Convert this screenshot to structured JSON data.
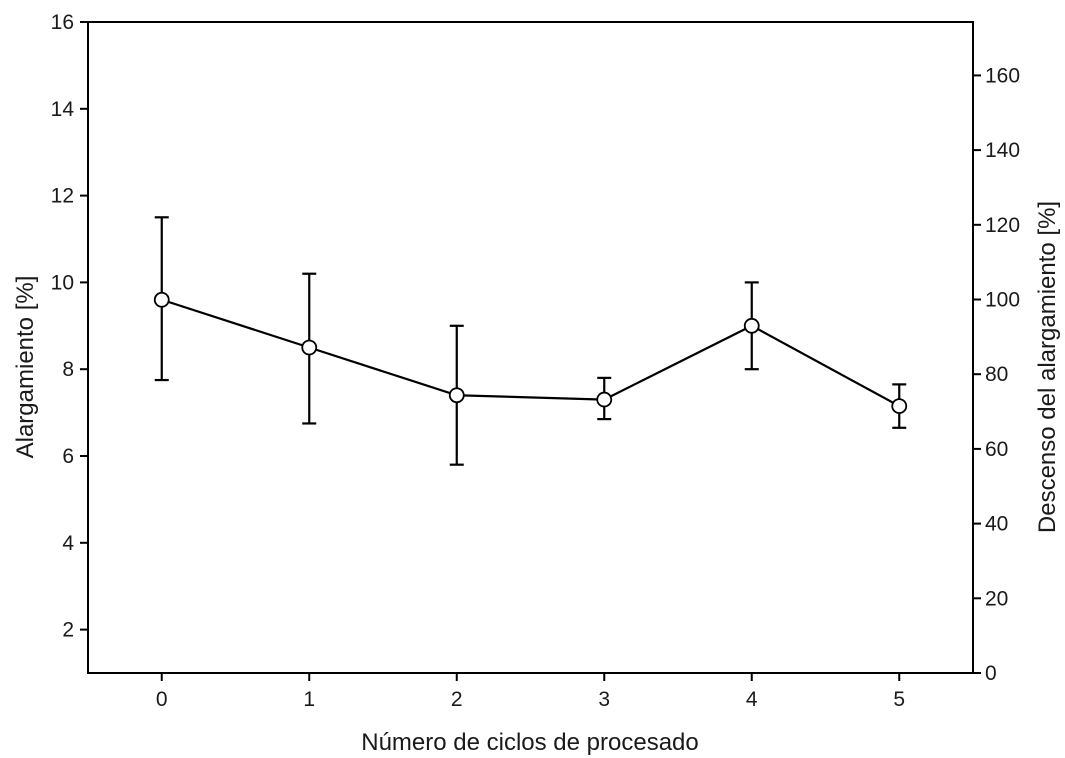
{
  "chart_data": {
    "type": "line",
    "x": [
      0,
      1,
      2,
      3,
      4,
      5
    ],
    "series": [
      {
        "values": [
          9.6,
          8.5,
          7.4,
          7.3,
          9.0,
          7.15
        ],
        "error_lower": [
          7.75,
          6.75,
          5.8,
          6.85,
          8.0,
          6.65
        ],
        "error_upper": [
          11.5,
          10.2,
          9.0,
          7.8,
          10.0,
          7.65
        ],
        "marker": "open-circle",
        "color": "#000000"
      }
    ],
    "xlabel": "Número de ciclos de procesado",
    "ylabel": "Alargamiento [%]",
    "y2label": "Descenso del alargamiento [%]",
    "xlim": [
      -0.5,
      5.5
    ],
    "ylim": [
      1,
      16
    ],
    "y2lim": [
      0,
      174.3
    ],
    "xticks": [
      "0",
      "1",
      "2",
      "3",
      "4",
      "5"
    ],
    "yticks": [
      "2",
      "4",
      "6",
      "8",
      "10",
      "12",
      "14",
      "16"
    ],
    "y2ticks": [
      "0",
      "20",
      "40",
      "60",
      "80",
      "100",
      "120",
      "140",
      "160"
    ],
    "grid": false,
    "legend": "none"
  }
}
